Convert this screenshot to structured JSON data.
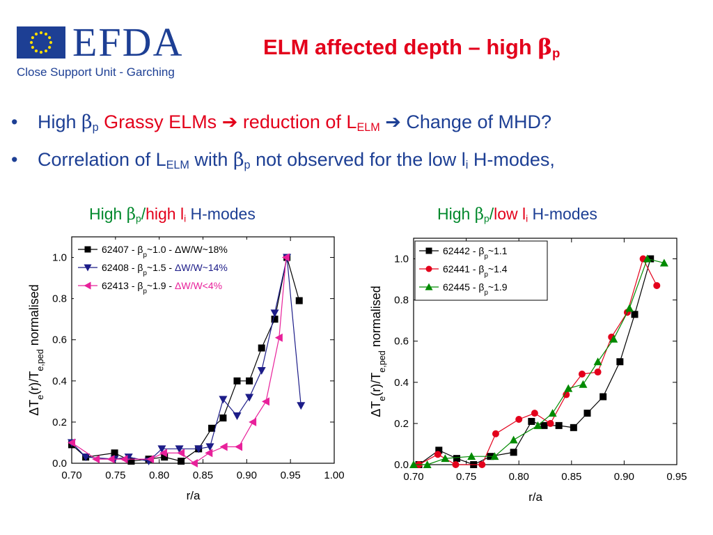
{
  "header": {
    "logo_text": "EFDA",
    "logo_subtitle": "Close Support Unit - Garching",
    "title_main": "ELM affected depth – high ",
    "title_beta": "β",
    "title_sub": "p"
  },
  "bullets": [
    {
      "dot": "•",
      "parts": {
        "a": "High ",
        "beta": "β",
        "beta_sub": "p",
        "b": " Grassy ELMs ",
        "arrow1": "➔",
        "c": " reduction of L",
        "c_sub": "ELM",
        "d": " ",
        "arrow2": "➔",
        "e": " Change of MHD?"
      }
    },
    {
      "dot": "•",
      "parts": {
        "a": "Correlation of L",
        "a_sub": "ELM",
        "b": " with ",
        "beta": "β",
        "beta_sub": "p",
        "c": " not observed for the low l",
        "c_sub": "i",
        "d": " H-modes,"
      }
    }
  ],
  "panels": [
    {
      "title_a": "High ",
      "title_beta": "β",
      "title_beta_sub": "p",
      "title_slash": "/",
      "title_b": "high l",
      "title_b_sub": "i",
      "title_c": " H-modes"
    },
    {
      "title_a": "High ",
      "title_beta": "β",
      "title_beta_sub": "p",
      "title_slash": "/",
      "title_b": "low l",
      "title_b_sub": "i",
      "title_c": " H-modes"
    }
  ],
  "colors": {
    "title_red": "#e3001b",
    "brand_blue": "#1d3f94",
    "green": "#00882b"
  },
  "chart_data": [
    {
      "type": "line",
      "xlabel": "r/a",
      "ylabel": "ΔT",
      "ylabel_full": "ΔTe(r)/Te,ped normalised",
      "xlim": [
        0.7,
        1.0
      ],
      "ylim": [
        0.0,
        1.1
      ],
      "xticks": [
        "0.70",
        "0.75",
        "0.80",
        "0.85",
        "0.90",
        "0.95",
        "1.00"
      ],
      "yticks": [
        "0.0",
        "0.2",
        "0.4",
        "0.6",
        "0.8",
        "1.0"
      ],
      "legend_position": "top-left",
      "series": [
        {
          "name": "62407 - βp~1.0 - ΔW/W~18%",
          "label_a": "62407 - β",
          "label_sub": "p",
          "label_b": "~1.0 - ",
          "label_c": "ΔW/W~18%",
          "color": "#000000",
          "label_color": "#000000",
          "marker": "square",
          "x": [
            0.7,
            0.716,
            0.749,
            0.768,
            0.788,
            0.806,
            0.825,
            0.845,
            0.86,
            0.873,
            0.889,
            0.903,
            0.917,
            0.932,
            0.946,
            0.96
          ],
          "y": [
            0.09,
            0.03,
            0.05,
            0.01,
            0.02,
            0.03,
            0.01,
            0.07,
            0.17,
            0.22,
            0.4,
            0.4,
            0.56,
            0.7,
            1.0,
            0.79
          ]
        },
        {
          "name": "62408 - βp~1.5 - ΔW/W~14%",
          "label_a": "62408 - β",
          "label_sub": "p",
          "label_b": "~1.5 - ",
          "label_c": "ΔW/W~14%",
          "color": "#1c1c88",
          "label_color": "#1c1c88",
          "marker": "triangle-down",
          "x": [
            0.7,
            0.716,
            0.749,
            0.765,
            0.788,
            0.803,
            0.823,
            0.845,
            0.858,
            0.873,
            0.889,
            0.903,
            0.917,
            0.932,
            0.946,
            0.962
          ],
          "y": [
            0.1,
            0.03,
            0.02,
            0.03,
            0.01,
            0.07,
            0.07,
            0.07,
            0.08,
            0.31,
            0.23,
            0.32,
            0.45,
            0.73,
            1.0,
            0.28
          ]
        },
        {
          "name": "62413 - βp~1.9 - ΔW/W<4%",
          "label_a": "62413 - β",
          "label_sub": "p",
          "label_b": "~1.9 - ",
          "label_c": "ΔW/W<4%",
          "color": "#e8209a",
          "label_color": "#e8209a",
          "marker": "triangle-left",
          "x": [
            0.7,
            0.728,
            0.745,
            0.76,
            0.79,
            0.805,
            0.825,
            0.84,
            0.857,
            0.874,
            0.891,
            0.907,
            0.922,
            0.937,
            0.945
          ],
          "y": [
            0.1,
            0.02,
            0.02,
            0.02,
            0.02,
            0.05,
            0.05,
            0.0,
            0.05,
            0.08,
            0.08,
            0.2,
            0.3,
            0.61,
            1.0
          ]
        }
      ]
    },
    {
      "type": "line",
      "xlabel": "r/a",
      "ylabel": "ΔT",
      "ylabel_full": "ΔTe(r)/Te,ped normalised",
      "xlim": [
        0.7,
        0.95
      ],
      "ylim": [
        0.0,
        1.1
      ],
      "xticks": [
        "0.70",
        "0.75",
        "0.80",
        "0.85",
        "0.90",
        "0.95"
      ],
      "yticks": [
        "0.0",
        "0.2",
        "0.4",
        "0.6",
        "0.8",
        "1.0"
      ],
      "legend_position": "top-left",
      "series": [
        {
          "name": "62442 - βp~1.1",
          "label_a": "62442 - β",
          "label_sub": "p",
          "label_b": "~1.1",
          "label_c": "",
          "color": "#000000",
          "label_color": "#000000",
          "marker": "square",
          "x": [
            0.705,
            0.724,
            0.741,
            0.757,
            0.773,
            0.795,
            0.812,
            0.824,
            0.838,
            0.852,
            0.865,
            0.88,
            0.896,
            0.91,
            0.925
          ],
          "y": [
            0.0,
            0.07,
            0.03,
            0.0,
            0.04,
            0.06,
            0.21,
            0.19,
            0.19,
            0.18,
            0.25,
            0.33,
            0.5,
            0.73,
            1.0
          ]
        },
        {
          "name": "62441 - βp~1.4",
          "label_a": "62441 - β",
          "label_sub": "p",
          "label_b": "~1.4",
          "label_c": "",
          "color": "#e3001b",
          "label_color": "#000000",
          "marker": "circle",
          "x": [
            0.705,
            0.723,
            0.74,
            0.765,
            0.778,
            0.8,
            0.815,
            0.83,
            0.845,
            0.86,
            0.875,
            0.888,
            0.903,
            0.918,
            0.931
          ],
          "y": [
            0.0,
            0.05,
            0.0,
            0.0,
            0.15,
            0.22,
            0.25,
            0.2,
            0.34,
            0.44,
            0.45,
            0.62,
            0.74,
            1.0,
            0.87
          ]
        },
        {
          "name": "62445 - βp~1.9",
          "label_a": "62445 - β",
          "label_sub": "p",
          "label_b": "~1.9",
          "label_c": "",
          "color": "#008a00",
          "label_color": "#000000",
          "marker": "triangle-up",
          "x": [
            0.7,
            0.713,
            0.73,
            0.755,
            0.777,
            0.795,
            0.818,
            0.832,
            0.847,
            0.861,
            0.875,
            0.89,
            0.905,
            0.922,
            0.938
          ],
          "y": [
            0.0,
            0.0,
            0.03,
            0.04,
            0.04,
            0.12,
            0.19,
            0.25,
            0.37,
            0.39,
            0.5,
            0.61,
            0.76,
            1.0,
            0.98
          ]
        }
      ]
    }
  ]
}
